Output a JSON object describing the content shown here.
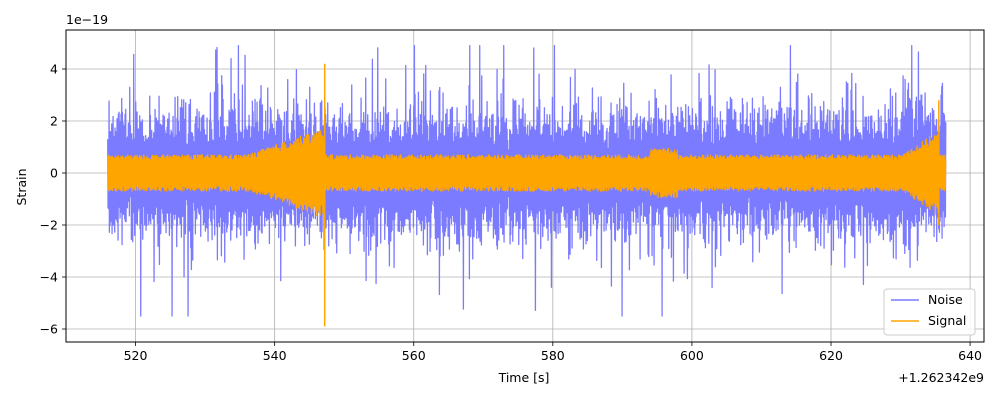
{
  "chart_data": {
    "type": "line",
    "xlabel": "Time [s]",
    "ylabel": "Strain",
    "x_offset_label": "+1.262342e9",
    "y_multiplier_label": "1e−19",
    "xlim": [
      510,
      642
    ],
    "ylim": [
      -6.5,
      5.5
    ],
    "x_ticks": [
      520,
      540,
      560,
      580,
      600,
      620,
      640
    ],
    "y_ticks": [
      -6,
      -4,
      -2,
      0,
      2,
      4
    ],
    "grid": true,
    "legend_position": "lower-right",
    "series": [
      {
        "name": "Noise",
        "color": "#7b7bff",
        "x_range": [
          516,
          636.5
        ],
        "typical_amplitude": 1.9,
        "min": -5.5,
        "max": 4.9
      },
      {
        "name": "Signal",
        "color": "#ffa500",
        "x_range": [
          516,
          636.5
        ],
        "typical_amplitude": 0.7,
        "min": -5.9,
        "max": 4.2,
        "features": [
          {
            "x": 547.2,
            "spike_min": -5.9,
            "spike_max": 4.2
          },
          {
            "x": 635.5,
            "spike_min": -2.0,
            "spike_max": 2.8
          }
        ]
      }
    ]
  }
}
